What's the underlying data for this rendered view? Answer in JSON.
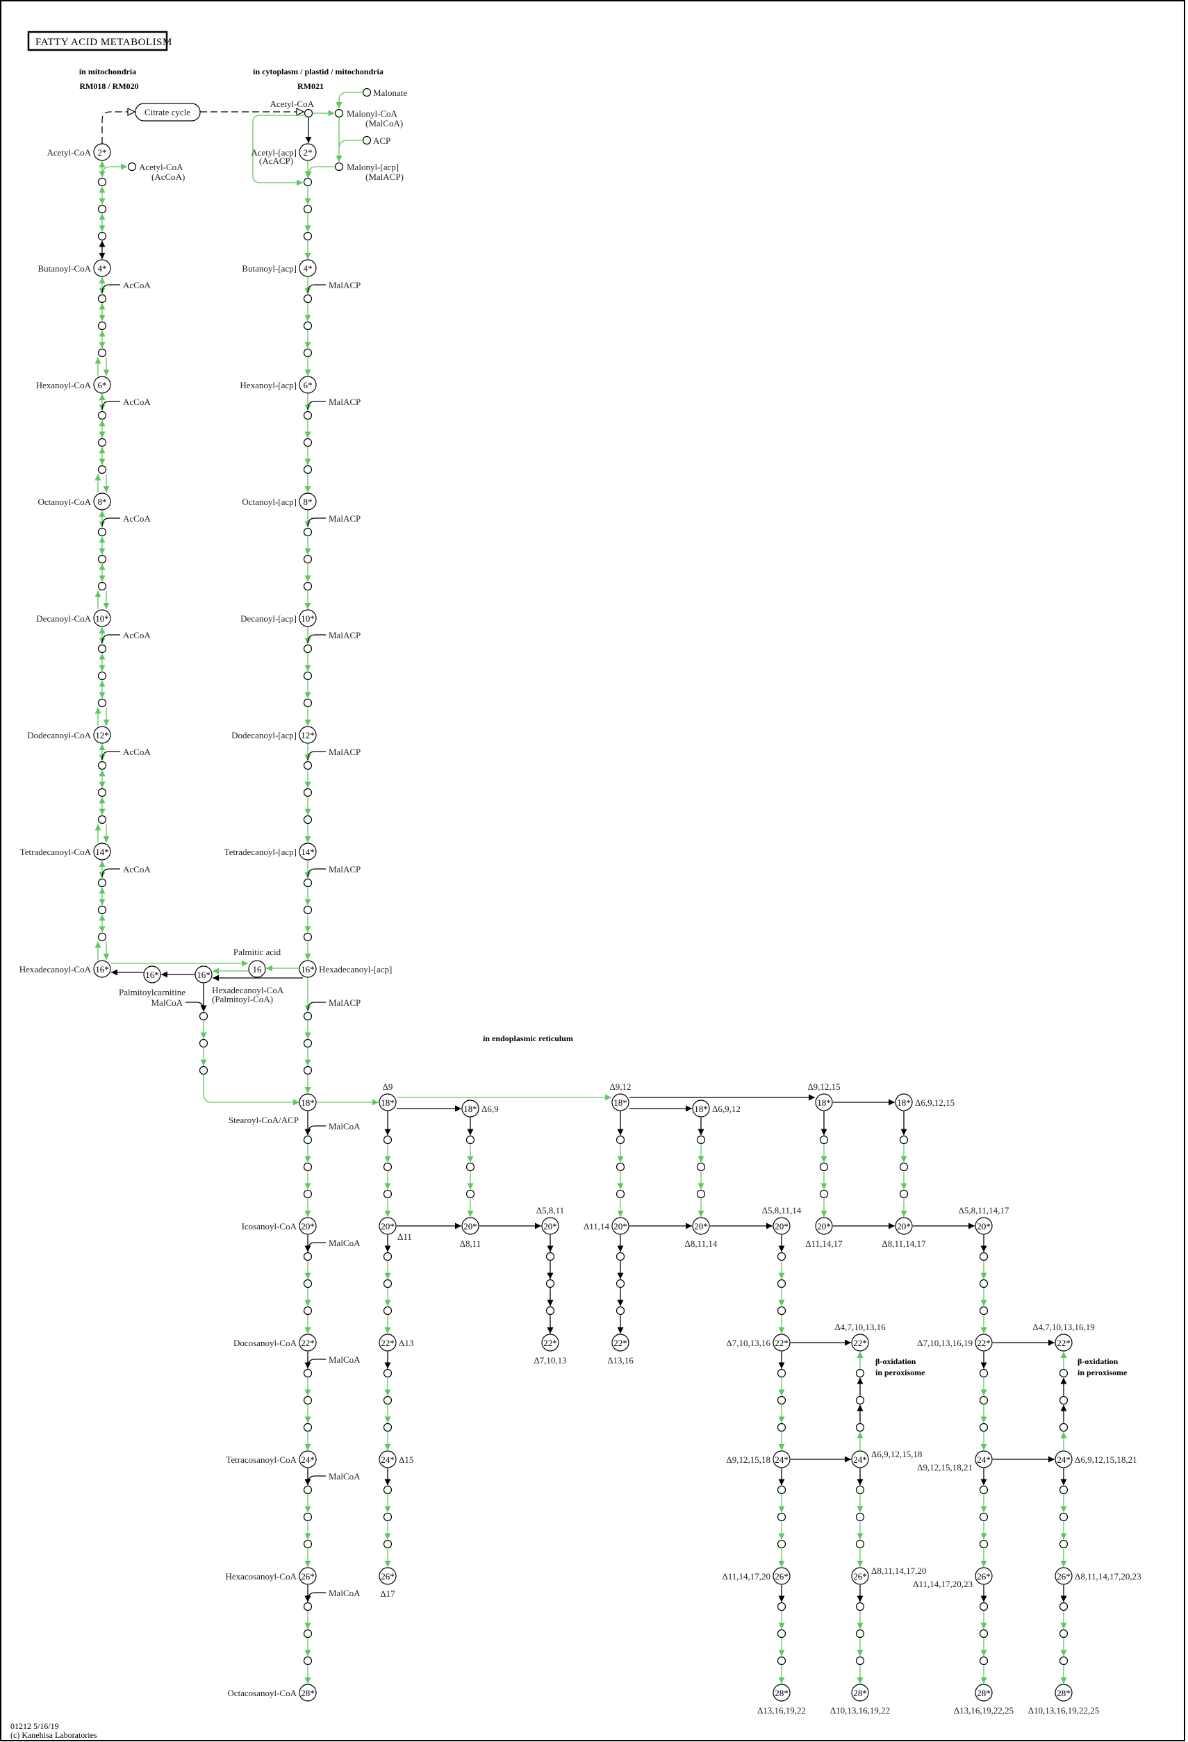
{
  "title": "FATTY ACID METABOLISM",
  "regions": {
    "mito": "in mitochondria",
    "mito_modules": "RM018 / RM020",
    "cyto": "in cytoplasm / plastid / mitochondria",
    "cyto_module": "RM021",
    "er": "in endoplasmic reticulum",
    "perox": [
      "β-oxidation",
      "in peroxisome"
    ]
  },
  "map_link": {
    "label": "Citrate cycle"
  },
  "footer": [
    "01212 5/16/19",
    "(c) Kanehisa Laboratories"
  ],
  "colors": {
    "green": "#5fc75f",
    "black": "#000000"
  },
  "compounds": [
    {
      "id": "m2",
      "carbon": "2*",
      "name": [
        "Acetyl-CoA"
      ]
    },
    {
      "id": "m4",
      "carbon": "4*",
      "name": [
        "Butanoyl-CoA"
      ]
    },
    {
      "id": "m6",
      "carbon": "6*",
      "name": [
        "Hexanoyl-CoA"
      ]
    },
    {
      "id": "m8",
      "carbon": "8*",
      "name": [
        "Octanoyl-CoA"
      ]
    },
    {
      "id": "m10",
      "carbon": "10*",
      "name": [
        "Decanoyl-CoA"
      ]
    },
    {
      "id": "m12",
      "carbon": "12*",
      "name": [
        "Dodecanoyl-CoA"
      ]
    },
    {
      "id": "m14",
      "carbon": "14*",
      "name": [
        "Tetradecanoyl-CoA"
      ]
    },
    {
      "id": "m16",
      "carbon": "16*",
      "name": [
        "Hexadecanoyl-CoA"
      ]
    },
    {
      "id": "c2",
      "carbon": "2*",
      "name": [
        "Acetyl-[acp]",
        "(AcACP)"
      ]
    },
    {
      "id": "c4",
      "carbon": "4*",
      "name": [
        "Butanoyl-[acp]"
      ]
    },
    {
      "id": "c6",
      "carbon": "6*",
      "name": [
        "Hexanoyl-[acp]"
      ]
    },
    {
      "id": "c8",
      "carbon": "8*",
      "name": [
        "Octanoyl-[acp]"
      ]
    },
    {
      "id": "c10",
      "carbon": "10*",
      "name": [
        "Decanoyl-[acp]"
      ]
    },
    {
      "id": "c12",
      "carbon": "12*",
      "name": [
        "Dodecanoyl-[acp]"
      ]
    },
    {
      "id": "c14",
      "carbon": "14*",
      "name": [
        "Tetradecanoyl-[acp]"
      ]
    },
    {
      "id": "c16",
      "carbon": "16*",
      "name": [
        "Hexadecanoyl-[acp]"
      ]
    },
    {
      "id": "pa",
      "carbon": "16",
      "name": [
        "Palmitic acid"
      ]
    },
    {
      "id": "pc",
      "carbon": "16*",
      "name": [
        "Hexadecanoyl-CoA",
        "(Palmitoyl-CoA)"
      ]
    },
    {
      "id": "pl",
      "carbon": "16*",
      "name": [
        "Palmitoylcarnitine"
      ]
    },
    {
      "id": "s18",
      "carbon": "18*",
      "name": [
        "Stearoyl-CoA/ACP"
      ]
    },
    {
      "id": "s20",
      "carbon": "20*",
      "name": [
        "Icosanoyl-CoA"
      ]
    },
    {
      "id": "s22",
      "carbon": "22*",
      "name": [
        "Docosanoyl-CoA"
      ]
    },
    {
      "id": "s24",
      "carbon": "24*",
      "name": [
        "Tetracosanoyl-CoA"
      ]
    },
    {
      "id": "s26",
      "carbon": "26*",
      "name": [
        "Hexacosanoyl-CoA"
      ]
    },
    {
      "id": "s28",
      "carbon": "28*",
      "name": [
        "Octacosanoyl-CoA"
      ]
    },
    {
      "id": "e_9",
      "carbon": "18*",
      "name": [
        "Δ9"
      ]
    },
    {
      "id": "e_69",
      "carbon": "18*",
      "name": [
        "Δ6,9"
      ]
    },
    {
      "id": "e_912",
      "carbon": "18*",
      "name": [
        "Δ9,12"
      ]
    },
    {
      "id": "e_6912",
      "carbon": "18*",
      "name": [
        "Δ6,9,12"
      ]
    },
    {
      "id": "e_91215",
      "carbon": "18*",
      "name": [
        "Δ9,12,15"
      ]
    },
    {
      "id": "e_691215",
      "carbon": "18*",
      "name": [
        "Δ6,9,12,15"
      ]
    },
    {
      "id": "e20_11",
      "carbon": "20*",
      "name": [
        "Δ11"
      ]
    },
    {
      "id": "e20_811",
      "carbon": "20*",
      "name": [
        "Δ8,11"
      ]
    },
    {
      "id": "e20_5811",
      "carbon": "20*",
      "name": [
        "Δ5,8,11"
      ]
    },
    {
      "id": "e20_1114",
      "carbon": "20*",
      "name": [
        "Δ11,14"
      ]
    },
    {
      "id": "e20_81114",
      "carbon": "20*",
      "name": [
        "Δ8,11,14"
      ]
    },
    {
      "id": "e20_581114",
      "carbon": "20*",
      "name": [
        "Δ5,8,11,14"
      ]
    },
    {
      "id": "e20_111417",
      "carbon": "20*",
      "name": [
        "Δ11,14,17"
      ]
    },
    {
      "id": "e20_8111417",
      "carbon": "20*",
      "name": [
        "Δ8,11,14,17"
      ]
    },
    {
      "id": "e20_58111417",
      "carbon": "20*",
      "name": [
        "Δ5,8,11,14,17"
      ]
    },
    {
      "id": "e22_13",
      "carbon": "22*",
      "name": [
        "Δ13"
      ]
    },
    {
      "id": "e22_71013",
      "carbon": "22*",
      "name": [
        "Δ7,10,13"
      ]
    },
    {
      "id": "e22_1316",
      "carbon": "22*",
      "name": [
        "Δ13,16"
      ]
    },
    {
      "id": "e22_a",
      "carbon": "22*",
      "name": [
        "Δ7,10,13,16"
      ]
    },
    {
      "id": "e22_b",
      "carbon": "22*",
      "name": [
        "Δ4,7,10,13,16"
      ]
    },
    {
      "id": "e22_c",
      "carbon": "22*",
      "name": [
        "Δ7,10,13,16,19"
      ]
    },
    {
      "id": "e22_d",
      "carbon": "22*",
      "name": [
        "Δ4,7,10,13,16,19"
      ]
    },
    {
      "id": "e24_15",
      "carbon": "24*",
      "name": [
        "Δ15"
      ]
    },
    {
      "id": "e24_a",
      "carbon": "24*",
      "name": [
        "Δ9,12,15,18"
      ]
    },
    {
      "id": "e24_b",
      "carbon": "24*",
      "name": [
        "Δ6,9,12,15,18"
      ]
    },
    {
      "id": "e24_c",
      "carbon": "24*",
      "name": [
        "Δ9,12,15,18,21"
      ]
    },
    {
      "id": "e24_d",
      "carbon": "24*",
      "name": [
        "Δ6,9,12,15,18,21"
      ]
    },
    {
      "id": "e26_17",
      "carbon": "26*",
      "name": [
        "Δ17"
      ]
    },
    {
      "id": "e26_a",
      "carbon": "26*",
      "name": [
        "Δ11,14,17,20"
      ]
    },
    {
      "id": "e26_b",
      "carbon": "26*",
      "name": [
        "Δ8,11,14,17,20"
      ]
    },
    {
      "id": "e26_c",
      "carbon": "26*",
      "name": [
        "Δ11,14,17,20,23"
      ]
    },
    {
      "id": "e26_d",
      "carbon": "26*",
      "name": [
        "Δ8,11,14,17,20,23"
      ]
    },
    {
      "id": "e28_a",
      "carbon": "28*",
      "name": [
        "Δ13,16,19,22"
      ]
    },
    {
      "id": "e28_b",
      "carbon": "28*",
      "name": [
        "Δ10,13,16,19,22"
      ]
    },
    {
      "id": "e28_c",
      "carbon": "28*",
      "name": [
        "Δ13,16,19,22,25"
      ]
    },
    {
      "id": "e28_d",
      "carbon": "28*",
      "name": [
        "Δ10,13,16,19,22,25"
      ]
    },
    {
      "id": "acoa_out",
      "carbon": "",
      "name": [
        "Acetyl-CoA",
        "(AcCoA)"
      ]
    },
    {
      "id": "acoa_cyt",
      "carbon": "",
      "name": [
        "Acetyl-CoA"
      ]
    },
    {
      "id": "malcoa",
      "carbon": "",
      "name": [
        "Malonyl-CoA",
        "(MalCoA)"
      ]
    },
    {
      "id": "malonate",
      "carbon": "",
      "name": [
        "Malonate"
      ]
    },
    {
      "id": "acp",
      "carbon": "",
      "name": [
        "ACP"
      ]
    },
    {
      "id": "malacp",
      "carbon": "",
      "name": [
        "Malonyl-[acp]",
        "(MalACP)"
      ]
    }
  ],
  "chains": [
    {
      "from": "m2",
      "to": "m4",
      "steps": [
        "gb",
        "gb",
        "gb",
        "kb"
      ]
    },
    {
      "from": "m4",
      "to": "m6",
      "steps": [
        "gb",
        "gb",
        "gb",
        "gp"
      ],
      "cofactor": "AcCoA"
    },
    {
      "from": "m6",
      "to": "m8",
      "steps": [
        "gb",
        "gb",
        "gb",
        "gp"
      ],
      "cofactor": "AcCoA"
    },
    {
      "from": "m8",
      "to": "m10",
      "steps": [
        "gb",
        "gb",
        "gb",
        "gp"
      ],
      "cofactor": "AcCoA"
    },
    {
      "from": "m10",
      "to": "m12",
      "steps": [
        "gb",
        "gb",
        "gb",
        "gp"
      ],
      "cofactor": "AcCoA"
    },
    {
      "from": "m12",
      "to": "m14",
      "steps": [
        "gb",
        "gb",
        "gb",
        "gp"
      ],
      "cofactor": "AcCoA"
    },
    {
      "from": "m14",
      "to": "m16",
      "steps": [
        "gb",
        "gb",
        "gb",
        "gp"
      ],
      "cofactor": "AcCoA"
    },
    {
      "from": "c2",
      "to": "c4",
      "steps": [
        "g",
        "g",
        "g",
        "g"
      ]
    },
    {
      "from": "c4",
      "to": "c6",
      "steps": [
        "g",
        "g",
        "g",
        "g"
      ],
      "cofactor": "MalACP"
    },
    {
      "from": "c6",
      "to": "c8",
      "steps": [
        "g",
        "g",
        "g",
        "g"
      ],
      "cofactor": "MalACP"
    },
    {
      "from": "c8",
      "to": "c10",
      "steps": [
        "g",
        "g",
        "g",
        "g"
      ],
      "cofactor": "MalACP"
    },
    {
      "from": "c10",
      "to": "c12",
      "steps": [
        "g",
        "g",
        "g",
        "g"
      ],
      "cofactor": "MalACP"
    },
    {
      "from": "c12",
      "to": "c14",
      "steps": [
        "g",
        "g",
        "g",
        "g"
      ],
      "cofactor": "MalACP"
    },
    {
      "from": "c14",
      "to": "c16",
      "steps": [
        "g",
        "g",
        "g",
        "g"
      ],
      "cofactor": "MalACP"
    },
    {
      "from": "c16",
      "to": "s18",
      "steps": [
        "g",
        "g",
        "g",
        "g"
      ],
      "cofactor": "MalACP"
    },
    {
      "from": "pc",
      "to": "s18",
      "steps": [
        "k",
        "g",
        "g",
        "g"
      ],
      "cofactor": "MalCoA"
    },
    {
      "from": "s18",
      "to": "s20",
      "steps": [
        "k",
        "g",
        "g",
        "g"
      ],
      "cofactor": "MalCoA"
    },
    {
      "from": "s20",
      "to": "s22",
      "steps": [
        "k",
        "g",
        "g",
        "g"
      ],
      "cofactor": "MalCoA"
    },
    {
      "from": "s22",
      "to": "s24",
      "steps": [
        "k",
        "g",
        "g",
        "g"
      ],
      "cofactor": "MalCoA"
    },
    {
      "from": "s24",
      "to": "s26",
      "steps": [
        "k",
        "g",
        "g",
        "g"
      ],
      "cofactor": "MalCoA"
    },
    {
      "from": "s26",
      "to": "s28",
      "steps": [
        "k",
        "g",
        "g",
        "g"
      ],
      "cofactor": "MalCoA"
    },
    {
      "from": "e_9",
      "to": "e20_11",
      "steps": [
        "k",
        "g",
        "g",
        "g"
      ]
    },
    {
      "from": "e20_11",
      "to": "e22_13",
      "steps": [
        "k",
        "g",
        "g",
        "g"
      ]
    },
    {
      "from": "e22_13",
      "to": "e24_15",
      "steps": [
        "k",
        "g",
        "g",
        "g"
      ]
    },
    {
      "from": "e24_15",
      "to": "e26_17",
      "steps": [
        "k",
        "g",
        "g",
        "g"
      ]
    },
    {
      "from": "e_69",
      "to": "e20_811",
      "steps": [
        "k",
        "g",
        "g",
        "g"
      ]
    },
    {
      "from": "e20_5811",
      "to": "e22_71013",
      "steps": [
        "k",
        "k",
        "k",
        "k"
      ]
    },
    {
      "from": "e_912",
      "to": "e20_1114",
      "steps": [
        "k",
        "g",
        "g",
        "g"
      ]
    },
    {
      "from": "e20_1114",
      "to": "e22_1316",
      "steps": [
        "k",
        "k",
        "k",
        "k"
      ]
    },
    {
      "from": "e_6912",
      "to": "e20_81114",
      "steps": [
        "k",
        "g",
        "g",
        "g"
      ]
    },
    {
      "from": "e20_581114",
      "to": "e22_a",
      "steps": [
        "k",
        "g",
        "g",
        "g"
      ]
    },
    {
      "from": "e22_a",
      "to": "e24_a",
      "steps": [
        "k",
        "g",
        "g",
        "g"
      ]
    },
    {
      "from": "e24_a",
      "to": "e26_a",
      "steps": [
        "k",
        "g",
        "g",
        "g"
      ]
    },
    {
      "from": "e26_a",
      "to": "e28_a",
      "steps": [
        "k",
        "g",
        "g",
        "g"
      ]
    },
    {
      "from": "e24_b",
      "to": "e22_b",
      "steps": [
        "g",
        "k",
        "k",
        "g"
      ]
    },
    {
      "from": "e24_b",
      "to": "e26_b",
      "steps": [
        "k",
        "g",
        "g",
        "g"
      ]
    },
    {
      "from": "e26_b",
      "to": "e28_b",
      "steps": [
        "k",
        "g",
        "g",
        "g"
      ]
    },
    {
      "from": "e_91215",
      "to": "e20_111417",
      "steps": [
        "k",
        "g",
        "g",
        "g"
      ]
    },
    {
      "from": "e_691215",
      "to": "e20_8111417",
      "steps": [
        "k",
        "g",
        "g",
        "g"
      ]
    },
    {
      "from": "e20_58111417",
      "to": "e22_c",
      "steps": [
        "k",
        "g",
        "g",
        "g"
      ]
    },
    {
      "from": "e22_c",
      "to": "e24_c",
      "steps": [
        "k",
        "g",
        "g",
        "g"
      ]
    },
    {
      "from": "e24_c",
      "to": "e26_c",
      "steps": [
        "k",
        "g",
        "g",
        "g"
      ]
    },
    {
      "from": "e26_c",
      "to": "e28_c",
      "steps": [
        "k",
        "g",
        "g",
        "g"
      ]
    },
    {
      "from": "e24_d",
      "to": "e22_d",
      "steps": [
        "g",
        "k",
        "k",
        "g"
      ]
    },
    {
      "from": "e24_d",
      "to": "e26_d",
      "steps": [
        "k",
        "g",
        "g",
        "g"
      ]
    },
    {
      "from": "e26_d",
      "to": "e28_d",
      "steps": [
        "k",
        "g",
        "g",
        "g"
      ]
    }
  ],
  "reactions": [
    {
      "from": "m2",
      "to": "citrate",
      "color": "black",
      "style": "dashed"
    },
    {
      "from": "citrate",
      "to": "acoa_cyt",
      "color": "black",
      "style": "dashed"
    },
    {
      "from": "m2~1",
      "to": "acoa_out",
      "color": "green"
    },
    {
      "from": "acoa_cyt",
      "to": "malcoa",
      "color": "green"
    },
    {
      "from": "acoa_cyt",
      "to": "c2",
      "color": "black"
    },
    {
      "from": "acoa_cyt",
      "to": "c2~1",
      "color": "green"
    },
    {
      "from": "malonate",
      "to": "malcoa",
      "color": "green"
    },
    {
      "from": "malcoa",
      "to": "malacp",
      "color": "green"
    },
    {
      "from": "acp",
      "to": "malacp",
      "color": "green"
    },
    {
      "from": "malacp",
      "to": "c2~1",
      "color": "green"
    },
    {
      "from": "m16",
      "to": "pa",
      "color": "green"
    },
    {
      "from": "c16",
      "to": "pa",
      "color": "green"
    },
    {
      "from": "pa",
      "to": "pc",
      "color": "green"
    },
    {
      "from": "c16",
      "to": "pc",
      "color": "black"
    },
    {
      "from": "pc",
      "to": "pl",
      "color": "black"
    },
    {
      "from": "pl",
      "to": "m16",
      "color": "black"
    },
    {
      "from": "s18",
      "to": "e_9",
      "color": "green"
    },
    {
      "from": "e_9",
      "to": "e_912",
      "color": "green"
    },
    {
      "from": "e_9",
      "to": "e_69",
      "color": "black"
    },
    {
      "from": "e_912",
      "to": "e_91215",
      "color": "black"
    },
    {
      "from": "e_912",
      "to": "e_6912",
      "color": "black"
    },
    {
      "from": "e_91215",
      "to": "e_691215",
      "color": "black"
    },
    {
      "from": "e20_11",
      "to": "e20_811",
      "color": "black"
    },
    {
      "from": "e20_811",
      "to": "e20_5811",
      "color": "black"
    },
    {
      "from": "e20_1114",
      "to": "e20_81114",
      "color": "black"
    },
    {
      "from": "e20_81114",
      "to": "e20_581114",
      "color": "black"
    },
    {
      "from": "e20_111417",
      "to": "e20_8111417",
      "color": "black"
    },
    {
      "from": "e20_8111417",
      "to": "e20_58111417",
      "color": "black"
    },
    {
      "from": "e22_a",
      "to": "e22_b",
      "color": "black"
    },
    {
      "from": "e22_c",
      "to": "e22_d",
      "color": "black"
    },
    {
      "from": "e24_a",
      "to": "e24_b",
      "color": "black"
    },
    {
      "from": "e24_c",
      "to": "e24_d",
      "color": "black"
    }
  ]
}
